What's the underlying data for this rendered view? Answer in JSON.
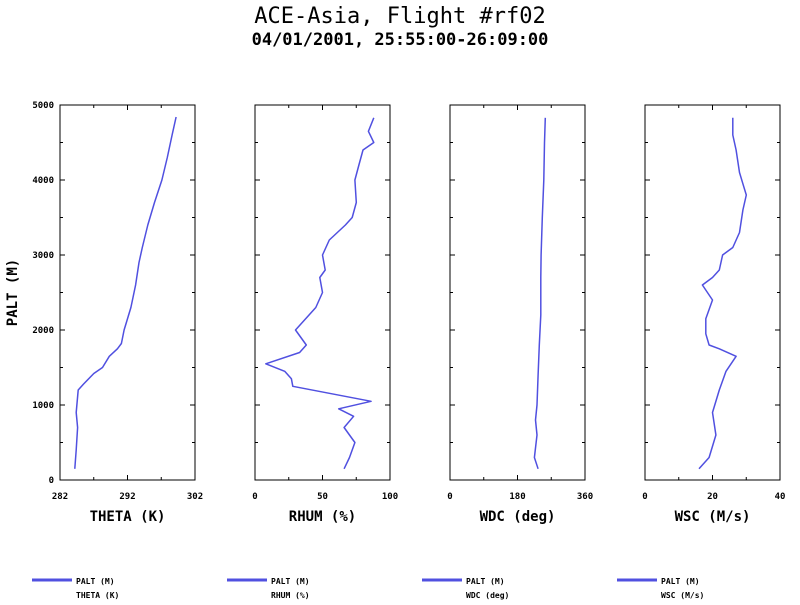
{
  "header": {
    "title": "ACE-Asia, Flight #rf02",
    "subtitle": "04/01/2001, 25:55:00-26:09:00"
  },
  "colors": {
    "series": "#5050e0",
    "axis": "#000000"
  },
  "chart_data": [
    {
      "type": "line",
      "xlabel": "THETA (K)",
      "ylabel": "PALT (M)",
      "xlim": [
        282,
        302
      ],
      "xticks": [
        "282",
        "292",
        "302"
      ],
      "ylim": [
        0,
        5000
      ],
      "yticks": [
        "0",
        "1000",
        "2000",
        "3000",
        "4000",
        "5000"
      ],
      "legend": [
        "PALT (M)",
        "THETA (K)"
      ],
      "points": [
        [
          284.2,
          150
        ],
        [
          284.4,
          400
        ],
        [
          284.6,
          700
        ],
        [
          284.4,
          900
        ],
        [
          284.7,
          1200
        ],
        [
          285.5,
          1280
        ],
        [
          287,
          1420
        ],
        [
          288.3,
          1500
        ],
        [
          289.3,
          1650
        ],
        [
          290.5,
          1750
        ],
        [
          291.1,
          1820
        ],
        [
          291.5,
          2000
        ],
        [
          292.5,
          2300
        ],
        [
          293.2,
          2600
        ],
        [
          293.7,
          2900
        ],
        [
          294.2,
          3100
        ],
        [
          295,
          3400
        ],
        [
          296,
          3700
        ],
        [
          297.1,
          4000
        ],
        [
          297.9,
          4300
        ],
        [
          298.6,
          4600
        ],
        [
          299.2,
          4840
        ]
      ]
    },
    {
      "type": "line",
      "xlabel": "RHUM (%)",
      "xlim": [
        0,
        100
      ],
      "xticks": [
        "0",
        "50",
        "100"
      ],
      "ylim": [
        0,
        5000
      ],
      "legend": [
        "PALT (M)",
        "RHUM (%)"
      ],
      "points": [
        [
          66,
          150
        ],
        [
          70,
          300
        ],
        [
          74,
          500
        ],
        [
          66,
          700
        ],
        [
          73,
          850
        ],
        [
          62,
          950
        ],
        [
          86,
          1050
        ],
        [
          28,
          1250
        ],
        [
          27,
          1350
        ],
        [
          22,
          1450
        ],
        [
          8,
          1550
        ],
        [
          33,
          1700
        ],
        [
          38,
          1800
        ],
        [
          30,
          2000
        ],
        [
          45,
          2300
        ],
        [
          50,
          2500
        ],
        [
          48,
          2700
        ],
        [
          52,
          2800
        ],
        [
          50,
          3000
        ],
        [
          55,
          3200
        ],
        [
          67,
          3400
        ],
        [
          72,
          3500
        ],
        [
          75,
          3700
        ],
        [
          74,
          4000
        ],
        [
          77,
          4200
        ],
        [
          80,
          4400
        ],
        [
          88,
          4500
        ],
        [
          84,
          4650
        ],
        [
          88,
          4830
        ]
      ]
    },
    {
      "type": "line",
      "xlabel": "WDC (deg)",
      "xlim": [
        0,
        360
      ],
      "xticks": [
        "0",
        "180",
        "360"
      ],
      "ylim": [
        0,
        5000
      ],
      "legend": [
        "PALT (M)",
        "WDC (deg)"
      ],
      "points": [
        [
          235,
          150
        ],
        [
          225,
          300
        ],
        [
          232,
          600
        ],
        [
          228,
          800
        ],
        [
          232,
          1000
        ],
        [
          235,
          1400
        ],
        [
          238,
          1800
        ],
        [
          242,
          2200
        ],
        [
          242,
          2700
        ],
        [
          243,
          3000
        ],
        [
          246,
          3500
        ],
        [
          250,
          4000
        ],
        [
          252,
          4500
        ],
        [
          254,
          4830
        ]
      ]
    },
    {
      "type": "line",
      "xlabel": "WSC (M/s)",
      "xlim": [
        0,
        40
      ],
      "xticks": [
        "0",
        "20",
        "40"
      ],
      "ylim": [
        0,
        5000
      ],
      "legend": [
        "PALT (M)",
        "WSC (M/s)"
      ],
      "points": [
        [
          16,
          150
        ],
        [
          19,
          300
        ],
        [
          21,
          600
        ],
        [
          20,
          900
        ],
        [
          22,
          1200
        ],
        [
          24,
          1450
        ],
        [
          27,
          1650
        ],
        [
          22,
          1750
        ],
        [
          19,
          1800
        ],
        [
          18,
          1950
        ],
        [
          18,
          2150
        ],
        [
          20,
          2400
        ],
        [
          17,
          2600
        ],
        [
          20,
          2700
        ],
        [
          22,
          2800
        ],
        [
          23,
          3000
        ],
        [
          26,
          3100
        ],
        [
          28,
          3300
        ],
        [
          29,
          3600
        ],
        [
          30,
          3800
        ],
        [
          29,
          3950
        ],
        [
          28,
          4100
        ],
        [
          27,
          4400
        ],
        [
          26,
          4600
        ],
        [
          26,
          4830
        ]
      ]
    }
  ]
}
